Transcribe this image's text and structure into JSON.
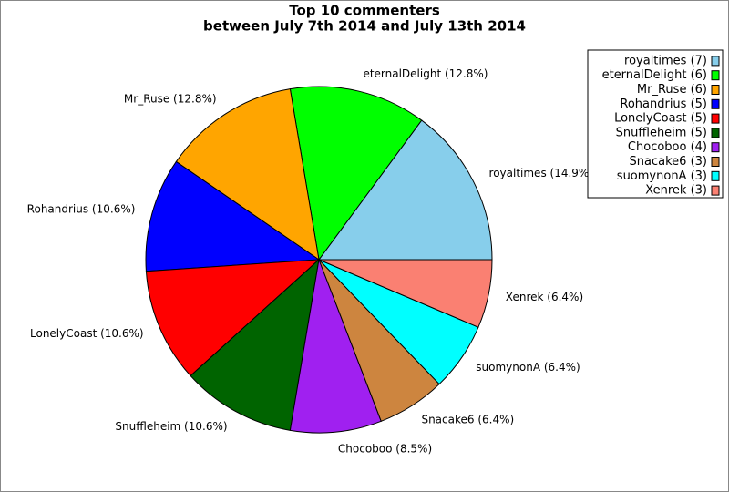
{
  "chart_data": {
    "type": "pie",
    "title": "Top 10 commenters",
    "subtitle": "between July 7th 2014 and July 13th 2014",
    "categories": [
      "royaltimes",
      "eternalDelight",
      "Mr_Ruse",
      "Rohandrius",
      "LonelyCoast",
      "Snuffleheim",
      "Chocoboo",
      "Snacake6",
      "suomynonA",
      "Xenrek"
    ],
    "values": [
      7,
      6,
      6,
      5,
      5,
      5,
      4,
      3,
      3,
      3
    ],
    "slice_labels": [
      "royaltimes (14.9%)",
      "eternalDelight (12.8%)",
      "Mr_Ruse (12.8%)",
      "Rohandrius (10.6%)",
      "LonelyCoast (10.6%)",
      "Snuffleheim (10.6%)",
      "Chocoboo (8.5%)",
      "Snacake6 (6.4%)",
      "suomynonA (6.4%)",
      "Xenrek (6.4%)"
    ],
    "legend_labels": [
      "royaltimes (7)",
      "eternalDelight (6)",
      "Mr_Ruse (6)",
      "Rohandrius (5)",
      "LonelyCoast (5)",
      "Snuffleheim (5)",
      "Chocoboo (4)",
      "Snacake6 (3)",
      "suomynonA (3)",
      "Xenrek (3)"
    ],
    "colors": [
      "#87ceeb",
      "#00ff00",
      "#ffa500",
      "#0000ff",
      "#ff0000",
      "#006400",
      "#a020f0",
      "#cd853f",
      "#00ffff",
      "#fa8072"
    ],
    "legend_position": "upper right"
  }
}
